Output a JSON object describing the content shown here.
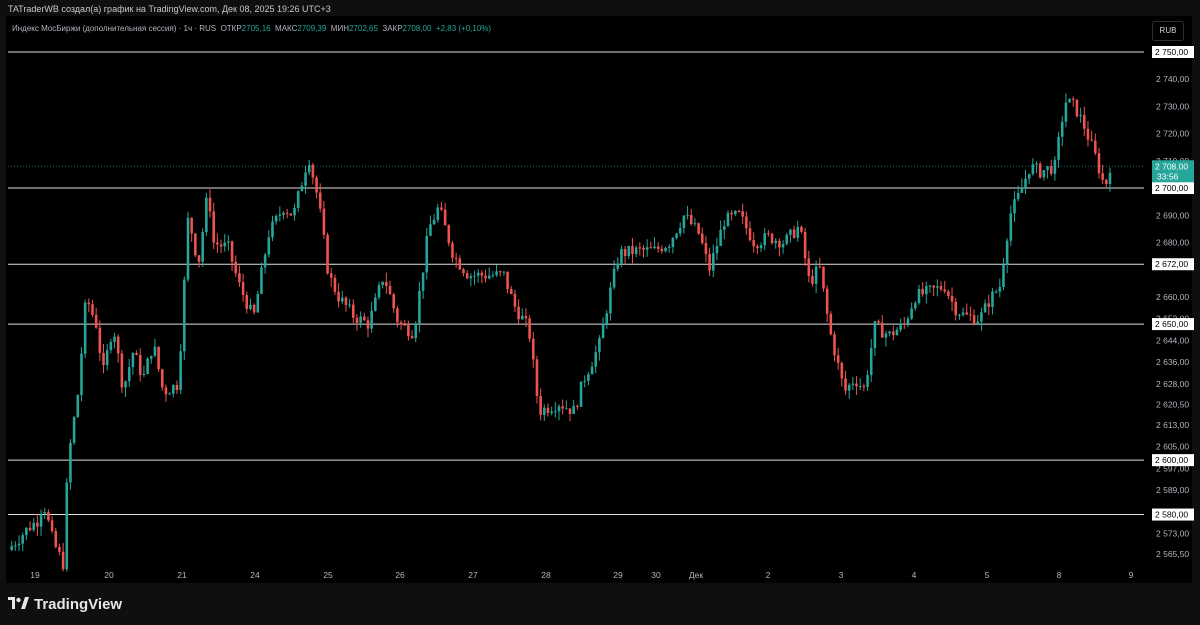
{
  "header": {
    "text": "TATraderWB создал(а) график на TradingView.com, Дек 08, 2025 19:26 UTC+3"
  },
  "legend": {
    "symbol": "Индекс МосБиржи (дополнительная сессия) · 1ч · RUS",
    "open_label": "ОТКР",
    "open": "2705,16",
    "high_label": "МАКС",
    "high": "2709,39",
    "low_label": "МИН",
    "low": "2702,65",
    "close_label": "ЗАКР",
    "close": "2708,00",
    "change": "+2,83 (+0,10%)"
  },
  "currency": "RUB",
  "brand": {
    "name": "TradingView",
    "icon": "tradingview-logo-icon"
  },
  "colors": {
    "up": "#26a69a",
    "down": "#ef5350",
    "level": "#e0e0e0",
    "background": "#000000",
    "axis_text": "#b2b5be"
  },
  "chart_data": {
    "type": "candlestick",
    "title": "Индекс МосБиржи (дополнительная сессия)",
    "timeframe": "1ч",
    "ylim": [
      2561,
      2755
    ],
    "y_ticks": [
      "2 740,00",
      "2 730,00",
      "2 720,00",
      "2 710,00",
      "2 690,00",
      "2 680,00",
      "2 660,00",
      "2 652,00",
      "2 644,00",
      "2 636,00",
      "2 628,00",
      "2 620,50",
      "2 613,00",
      "2 605,00",
      "2 597,00",
      "2 589,00",
      "2 573,00",
      "2 565,50"
    ],
    "x_ticks": [
      "19",
      "20",
      "21",
      "24",
      "25",
      "26",
      "27",
      "28",
      "29",
      "30",
      "Дек",
      "2",
      "3",
      "4",
      "5",
      "8",
      "9"
    ],
    "level_lines": [
      {
        "value": 2750,
        "label": "2 750,00"
      },
      {
        "value": 2700,
        "label": "2 700,00"
      },
      {
        "value": 2672,
        "label": "2 672,00"
      },
      {
        "value": 2650,
        "label": "2 650,00"
      },
      {
        "value": 2600,
        "label": "2 600,00"
      },
      {
        "value": 2580,
        "label": "2 580,00"
      }
    ],
    "last_price": {
      "value": 2708,
      "label": "2 708,00",
      "countdown": "33:56"
    },
    "close_path": [
      {
        "x": 0.0,
        "y": 2567
      },
      {
        "x": 0.1,
        "y": 2571
      },
      {
        "x": 0.2,
        "y": 2575
      },
      {
        "x": 0.3,
        "y": 2578
      },
      {
        "x": 0.35,
        "y": 2585
      },
      {
        "x": 0.45,
        "y": 2570
      },
      {
        "x": 0.55,
        "y": 2562
      },
      {
        "x": 0.6,
        "y": 2600
      },
      {
        "x": 0.7,
        "y": 2625
      },
      {
        "x": 0.78,
        "y": 2660
      },
      {
        "x": 0.88,
        "y": 2650
      },
      {
        "x": 0.95,
        "y": 2632
      },
      {
        "x": 1.05,
        "y": 2650
      },
      {
        "x": 1.15,
        "y": 2626
      },
      {
        "x": 1.25,
        "y": 2640
      },
      {
        "x": 1.35,
        "y": 2630
      },
      {
        "x": 1.45,
        "y": 2643
      },
      {
        "x": 1.55,
        "y": 2625
      },
      {
        "x": 1.7,
        "y": 2628
      },
      {
        "x": 1.8,
        "y": 2690
      },
      {
        "x": 1.9,
        "y": 2672
      },
      {
        "x": 2.0,
        "y": 2700
      },
      {
        "x": 2.05,
        "y": 2680
      },
      {
        "x": 2.2,
        "y": 2678
      },
      {
        "x": 2.3,
        "y": 2665
      },
      {
        "x": 2.45,
        "y": 2652
      },
      {
        "x": 2.6,
        "y": 2683
      },
      {
        "x": 2.75,
        "y": 2693
      },
      {
        "x": 2.85,
        "y": 2690
      },
      {
        "x": 3.0,
        "y": 2712
      },
      {
        "x": 3.1,
        "y": 2695
      },
      {
        "x": 3.2,
        "y": 2668
      },
      {
        "x": 3.3,
        "y": 2660
      },
      {
        "x": 3.45,
        "y": 2653
      },
      {
        "x": 3.6,
        "y": 2650
      },
      {
        "x": 3.75,
        "y": 2668
      },
      {
        "x": 3.9,
        "y": 2650
      },
      {
        "x": 4.05,
        "y": 2647
      },
      {
        "x": 4.2,
        "y": 2685
      },
      {
        "x": 4.3,
        "y": 2693
      },
      {
        "x": 4.45,
        "y": 2675
      },
      {
        "x": 4.6,
        "y": 2668
      },
      {
        "x": 4.75,
        "y": 2668
      },
      {
        "x": 4.95,
        "y": 2668
      },
      {
        "x": 5.05,
        "y": 2657
      },
      {
        "x": 5.2,
        "y": 2648
      },
      {
        "x": 5.3,
        "y": 2618
      },
      {
        "x": 5.5,
        "y": 2621
      },
      {
        "x": 5.65,
        "y": 2618
      },
      {
        "x": 5.75,
        "y": 2630
      },
      {
        "x": 5.9,
        "y": 2642
      },
      {
        "x": 6.0,
        "y": 2660
      },
      {
        "x": 6.1,
        "y": 2676
      },
      {
        "x": 6.3,
        "y": 2677
      },
      {
        "x": 6.45,
        "y": 2677
      },
      {
        "x": 6.6,
        "y": 2680
      },
      {
        "x": 6.75,
        "y": 2690
      },
      {
        "x": 6.9,
        "y": 2683
      },
      {
        "x": 7.0,
        "y": 2670
      },
      {
        "x": 7.15,
        "y": 2688
      },
      {
        "x": 7.3,
        "y": 2690
      },
      {
        "x": 7.45,
        "y": 2680
      },
      {
        "x": 7.6,
        "y": 2682
      },
      {
        "x": 7.75,
        "y": 2680
      },
      {
        "x": 7.9,
        "y": 2686
      },
      {
        "x": 8.0,
        "y": 2665
      },
      {
        "x": 8.1,
        "y": 2671
      },
      {
        "x": 8.2,
        "y": 2648
      },
      {
        "x": 8.35,
        "y": 2625
      },
      {
        "x": 8.45,
        "y": 2630
      },
      {
        "x": 8.55,
        "y": 2626
      },
      {
        "x": 8.65,
        "y": 2649
      },
      {
        "x": 8.8,
        "y": 2646
      },
      {
        "x": 8.95,
        "y": 2650
      },
      {
        "x": 9.05,
        "y": 2660
      },
      {
        "x": 9.2,
        "y": 2662
      },
      {
        "x": 9.35,
        "y": 2664
      },
      {
        "x": 9.45,
        "y": 2656
      },
      {
        "x": 9.55,
        "y": 2653
      },
      {
        "x": 9.7,
        "y": 2652
      },
      {
        "x": 9.8,
        "y": 2659
      },
      {
        "x": 9.9,
        "y": 2664
      },
      {
        "x": 10.0,
        "y": 2690
      },
      {
        "x": 10.1,
        "y": 2698
      },
      {
        "x": 10.2,
        "y": 2708
      },
      {
        "x": 10.3,
        "y": 2706
      },
      {
        "x": 10.45,
        "y": 2708
      },
      {
        "x": 10.55,
        "y": 2732
      },
      {
        "x": 10.65,
        "y": 2730
      },
      {
        "x": 10.75,
        "y": 2722
      },
      {
        "x": 10.85,
        "y": 2712
      },
      {
        "x": 10.95,
        "y": 2700
      },
      {
        "x": 11.0,
        "y": 2708
      }
    ]
  }
}
